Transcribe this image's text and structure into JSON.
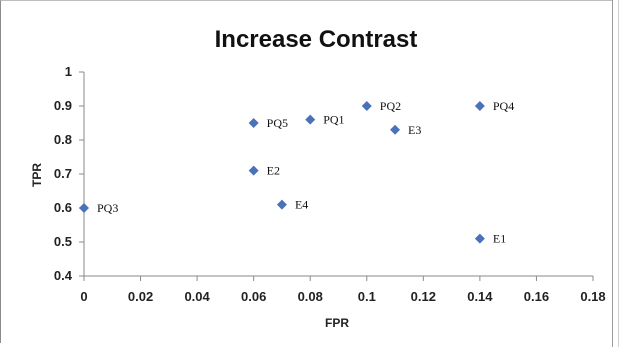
{
  "chart_data": {
    "type": "scatter",
    "title": "Increase Contrast",
    "xlabel": "FPR",
    "ylabel": "TPR",
    "xlim": [
      0,
      0.18
    ],
    "ylim": [
      0.4,
      1
    ],
    "xticks": [
      0,
      0.02,
      0.04,
      0.06,
      0.08,
      0.1,
      0.12,
      0.14,
      0.16,
      0.18
    ],
    "xtick_labels": [
      "0",
      "0.02",
      "0.04",
      "0.06",
      "0.08",
      "0.1",
      "0.12",
      "0.14",
      "0.16",
      "0.18"
    ],
    "yticks": [
      0.4,
      0.5,
      0.6,
      0.7,
      0.8,
      0.9,
      1
    ],
    "ytick_labels": [
      "0.4",
      "0.5",
      "0.6",
      "0.7",
      "0.8",
      "0.9",
      "1"
    ],
    "grid": false,
    "marker_color": "#4a72b8",
    "points": [
      {
        "label": "PQ3",
        "x": 0,
        "y": 0.6
      },
      {
        "label": "PQ5",
        "x": 0.06,
        "y": 0.85
      },
      {
        "label": "E2",
        "x": 0.06,
        "y": 0.71
      },
      {
        "label": "E4",
        "x": 0.07,
        "y": 0.61
      },
      {
        "label": "PQ1",
        "x": 0.08,
        "y": 0.86
      },
      {
        "label": "PQ2",
        "x": 0.1,
        "y": 0.9
      },
      {
        "label": "E3",
        "x": 0.11,
        "y": 0.83
      },
      {
        "label": "PQ4",
        "x": 0.14,
        "y": 0.9
      },
      {
        "label": "E1",
        "x": 0.14,
        "y": 0.51
      }
    ]
  }
}
